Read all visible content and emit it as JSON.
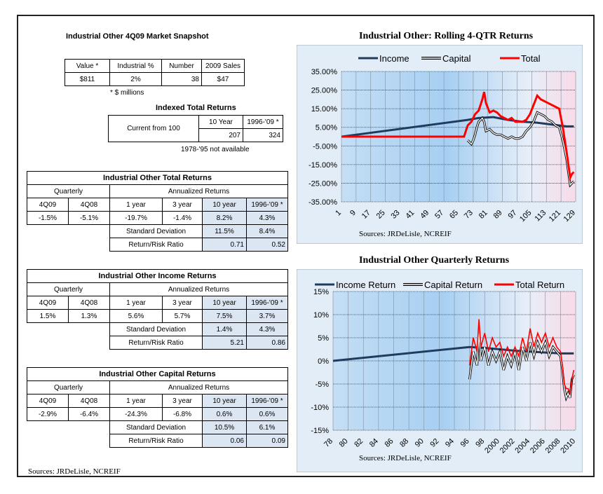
{
  "snapshot": {
    "title": "Industrial Other 4Q09 Market Snapshot",
    "headers": [
      "Value *",
      "Industrial %",
      "Number",
      "2009 Sales"
    ],
    "values": [
      "$811",
      "2%",
      "38",
      "$47"
    ],
    "note": "* $ millions"
  },
  "indexed": {
    "title": "Indexed Total Returns",
    "label": "Current from 100",
    "col1": "10 Year",
    "col2": "1996-'09 *",
    "v1": "207",
    "v2": "324",
    "note": "1978-'95 not available"
  },
  "tables": [
    {
      "title": "Industrial Other Total Returns",
      "quarterly": "Quarterly",
      "annualized": "Annualized Returns",
      "heads": [
        "4Q09",
        "4Q08",
        "1 year",
        "3 year",
        "10 year",
        "1996-'09 *"
      ],
      "vals": [
        "-1.5%",
        "-5.1%",
        "-19.7%",
        "-1.4%",
        "8.2%",
        "4.3%"
      ],
      "sd_label": "Standard Deviation",
      "sd": [
        "11.5%",
        "8.4%"
      ],
      "rr_label": "Return/Risk Ratio",
      "rr": [
        "0.71",
        "0.52"
      ]
    },
    {
      "title": "Industrial Other Income Returns",
      "quarterly": "Quarterly",
      "annualized": "Annualized Returns",
      "heads": [
        "4Q09",
        "4Q08",
        "1 year",
        "3 year",
        "10 year",
        "1996-'09 *"
      ],
      "vals": [
        "1.5%",
        "1.3%",
        "5.6%",
        "5.7%",
        "7.5%",
        "3.7%"
      ],
      "sd_label": "Standard Deviation",
      "sd": [
        "1.4%",
        "4.3%"
      ],
      "rr_label": "Return/Risk Ratio",
      "rr": [
        "5.21",
        "0.86"
      ]
    },
    {
      "title": "Industrial Other Capital Returns",
      "quarterly": "Quarterly",
      "annualized": "Annualized Returns",
      "heads": [
        "4Q09",
        "4Q08",
        "1 year",
        "3 year",
        "10 year",
        "1996-'09 *"
      ],
      "vals": [
        "-2.9%",
        "-6.4%",
        "-24.3%",
        "-6.8%",
        "0.6%",
        "0.6%"
      ],
      "sd_label": "Standard Deviation",
      "sd": [
        "10.5%",
        "6.1%"
      ],
      "rr_label": "Return/Risk Ratio",
      "rr": [
        "0.06",
        "0.09"
      ]
    }
  ],
  "sources_left": "Sources: JRDeLisle, NCREIF",
  "chart_data": [
    {
      "type": "line",
      "title": "Industrial Other:  Rolling 4-QTR Returns",
      "sources": "Sources: JRDeLisle, NCREIF",
      "ylim": [
        -35,
        35
      ],
      "yticks": [
        "35.00%",
        "25.00%",
        "15.00%",
        "5.00%",
        "-5.00%",
        "-15.00%",
        "-25.00%",
        "-35.00%"
      ],
      "xticks": [
        "1",
        "9",
        "17",
        "25",
        "33",
        "41",
        "49",
        "57",
        "65",
        "73",
        "81",
        "89",
        "97",
        "105",
        "113",
        "121",
        "129"
      ],
      "xlim": [
        1,
        129
      ],
      "grid": true,
      "legend": "top",
      "colors": {
        "Income": "#1f3b5e",
        "Capital": "#000000",
        "Total": "#ff0000"
      },
      "series": [
        {
          "name": "Income",
          "x": [
            1,
            70,
            76,
            84,
            92,
            100,
            108,
            116,
            124,
            128
          ],
          "values": [
            0,
            9,
            10,
            10.5,
            9,
            8,
            7.5,
            6.5,
            5.5,
            5.5
          ]
        },
        {
          "name": "Capital",
          "x": [
            70,
            71,
            72,
            73,
            74,
            75,
            76,
            77,
            78,
            79,
            80,
            82,
            84,
            86,
            88,
            90,
            92,
            94,
            96,
            98,
            100,
            102,
            104,
            106,
            108,
            110,
            112,
            114,
            116,
            118,
            120,
            122,
            124,
            126,
            127,
            128
          ],
          "values": [
            -2,
            -3,
            -4,
            -2,
            1,
            5,
            8,
            9,
            10,
            8,
            3,
            4,
            2,
            1,
            1,
            0,
            -1,
            0,
            -1,
            -1,
            0,
            3,
            5,
            8,
            13,
            12,
            11,
            9,
            8,
            6,
            5,
            -2,
            -12,
            -26,
            -25,
            -24
          ]
        },
        {
          "name": "Total",
          "x": [
            1,
            68,
            70,
            72,
            74,
            76,
            78,
            79,
            80,
            82,
            84,
            86,
            88,
            90,
            92,
            94,
            96,
            98,
            100,
            102,
            104,
            106,
            108,
            110,
            112,
            114,
            116,
            118,
            120,
            122,
            124,
            126,
            127,
            128
          ],
          "values": [
            0,
            0,
            6,
            8,
            12,
            14,
            20,
            24,
            18,
            13,
            14,
            13,
            11,
            10,
            9,
            10,
            8,
            8,
            8,
            9,
            12,
            17,
            22,
            20,
            19,
            18,
            17,
            16,
            15,
            5,
            -8,
            -22,
            -20,
            -19
          ]
        }
      ]
    },
    {
      "type": "line",
      "title": "Industrial Other Quarterly Returns",
      "sources": "Sources: JRDeLisle, NCREIF",
      "ylim": [
        -15,
        15
      ],
      "yticks": [
        "15%",
        "10%",
        "5%",
        "0%",
        "-5%",
        "-10%",
        "-15%"
      ],
      "xticks": [
        "78",
        "80",
        "82",
        "84",
        "86",
        "88",
        "90",
        "92",
        "94",
        "96",
        "98",
        "2000",
        "2002",
        "2004",
        "2006",
        "2008",
        "2010"
      ],
      "xlim": [
        1978,
        2010
      ],
      "grid": true,
      "legend": "top",
      "colors": {
        "Income Return": "#1f3b5e",
        "Capital Return": "#000000",
        "Total Return": "#ff0000"
      },
      "series": [
        {
          "name": "Income Return",
          "x": [
            1978,
            1996,
            1998,
            2000,
            2002,
            2004,
            2006,
            2008,
            2009.75
          ],
          "values": [
            0,
            3,
            2.8,
            2.5,
            2.2,
            2,
            1.8,
            1.6,
            1.6
          ]
        },
        {
          "name": "Capital Return",
          "x": [
            1996,
            1996.5,
            1997,
            1997.25,
            1997.5,
            1998,
            1998.5,
            1999,
            1999.5,
            2000,
            2000.5,
            2001,
            2001.5,
            2002,
            2002.5,
            2003,
            2003.5,
            2004,
            2004.5,
            2005,
            2005.5,
            2006,
            2006.5,
            2007,
            2007.5,
            2008,
            2008.25,
            2008.5,
            2008.75,
            2009,
            2009.25,
            2009.5,
            2009.75
          ],
          "values": [
            -4,
            2,
            -1,
            6,
            0,
            3,
            -1,
            2,
            0,
            2,
            -2,
            1,
            -1,
            2,
            -2,
            3,
            0,
            4,
            1,
            4,
            2,
            4,
            1,
            3,
            2,
            1,
            -2,
            -6,
            -8,
            -7,
            -8,
            -4,
            -3
          ]
        },
        {
          "name": "Total Return",
          "x": [
            1996,
            1996.5,
            1997,
            1997.25,
            1997.5,
            1998,
            1998.5,
            1999,
            1999.5,
            2000,
            2000.5,
            2001,
            2001.5,
            2002,
            2002.5,
            2003,
            2003.5,
            2004,
            2004.5,
            2005,
            2005.5,
            2006,
            2006.5,
            2007,
            2007.5,
            2008,
            2008.25,
            2008.5,
            2008.75,
            2009,
            2009.25,
            2009.5,
            2009.75
          ],
          "values": [
            -1,
            5,
            2,
            9,
            3,
            6,
            2,
            5,
            3,
            4,
            1,
            3,
            1,
            3,
            1,
            5,
            2,
            7,
            3,
            6,
            4,
            6,
            3,
            5,
            3,
            2,
            -1,
            -5,
            -6,
            -6,
            -7,
            -4,
            -2
          ]
        }
      ]
    }
  ]
}
